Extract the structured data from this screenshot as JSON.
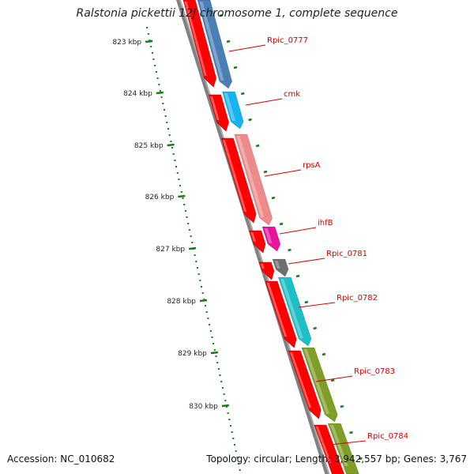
{
  "title": "Ralstonia pickettii 12J chromosome 1, complete sequence",
  "accession_label": "Accession:",
  "accession": "NC_010682",
  "topology_label": "Topology:",
  "topology": "circular;",
  "length_label": "Length:",
  "length": "3,942,557 bp;",
  "genes_label": "Genes:",
  "genes": "3,767",
  "colors": {
    "backbone": "#808080",
    "minor_tick": "#1a7a1a",
    "gene_label": "#d40000",
    "leader": "#d40000"
  },
  "scale_ticks": [
    "823 kbp",
    "824 kbp",
    "825 kbp",
    "826 kbp",
    "827 kbp",
    "828 kbp",
    "829 kbp",
    "830 kbp"
  ],
  "genes_list": [
    {
      "label": "Rpic_0777",
      "color": "#4a7fb5"
    },
    {
      "label": "cmk",
      "color": "#16b4ef"
    },
    {
      "label": "rpsA",
      "color": "#ee8a8a"
    },
    {
      "label": "ihfB",
      "color": "#e8149c"
    },
    {
      "label": "Rpic_0781",
      "color": "#6e6e6e"
    },
    {
      "label": "Rpic_0782",
      "color": "#1cbfc6"
    },
    {
      "label": "Rpic_0783",
      "color": "#7e9e28"
    },
    {
      "label": "Rpic_0784",
      "color": "#7e9e28"
    }
  ]
}
